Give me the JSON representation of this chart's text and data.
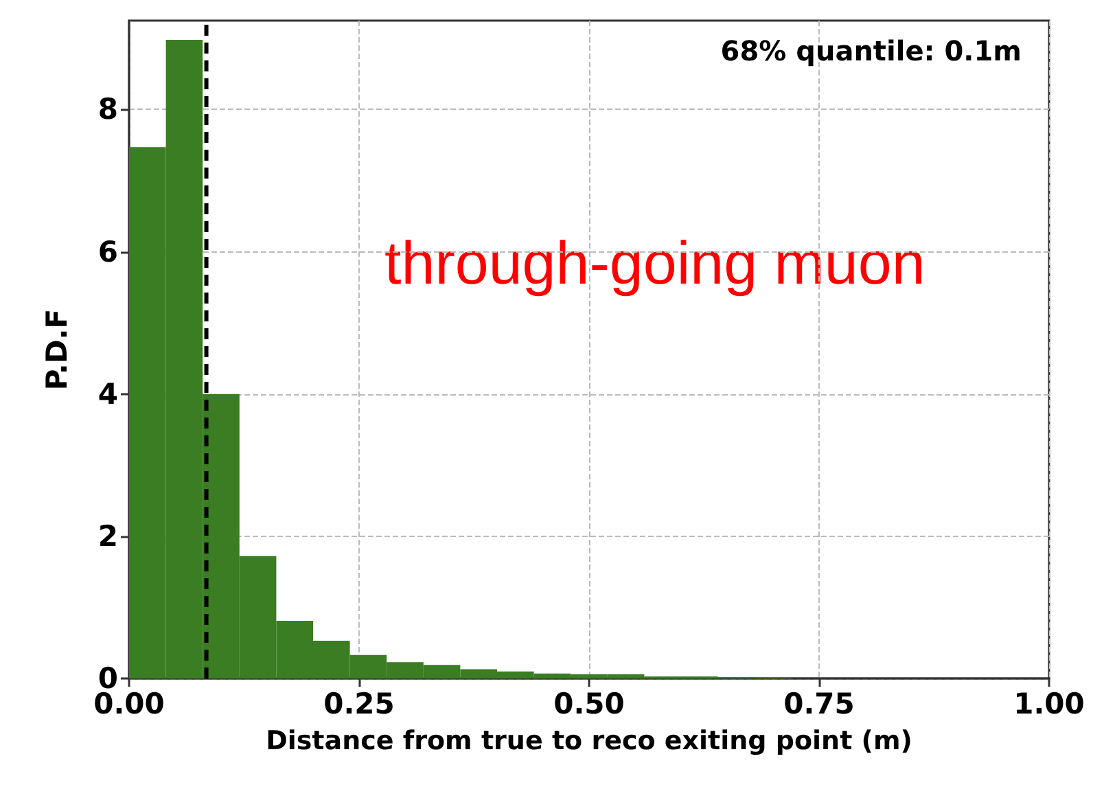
{
  "chart_data": {
    "type": "histogram",
    "xlabel": "Distance from true to reco exiting point (m)",
    "ylabel": "P.D.F",
    "bins": [
      0,
      0.04,
      0.08,
      0.12,
      0.16,
      0.2,
      0.24,
      0.28,
      0.32,
      0.36,
      0.4,
      0.44,
      0.48,
      0.52,
      0.56,
      0.6,
      0.64,
      0.68,
      0.72
    ],
    "values": [
      7.47,
      8.98,
      4.0,
      1.72,
      0.81,
      0.53,
      0.33,
      0.23,
      0.19,
      0.13,
      0.1,
      0.07,
      0.06,
      0.06,
      0.03,
      0.03,
      0.02,
      0.01
    ],
    "color": "#3a7d22",
    "xlim": [
      0,
      1
    ],
    "xticks": [
      {
        "value": 0,
        "label": "0.00"
      },
      0.25,
      {
        "value": 0.5,
        "label": "0.50"
      },
      0.75,
      {
        "value": 1,
        "label": "1.00"
      }
    ],
    "ylim": [
      0,
      9.25
    ],
    "yticks": [
      0,
      2,
      4,
      6,
      8
    ],
    "ref_lines": [
      {
        "axis": "x",
        "value": 0.084,
        "label": "68% quantile: 0.1m",
        "color": "#000000",
        "line_style": "dashed"
      }
    ],
    "annotations": [
      "through-going muon"
    ],
    "grid": true,
    "legend": "top right"
  }
}
